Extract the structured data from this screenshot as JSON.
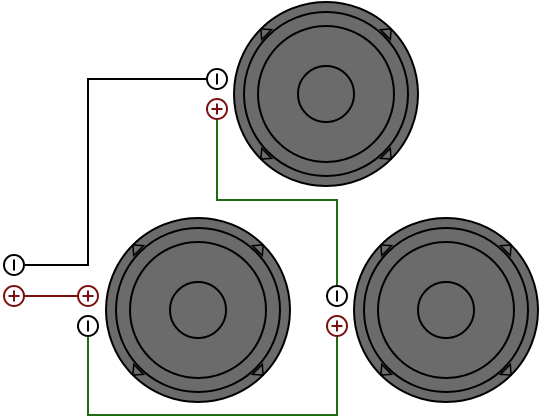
{
  "colors": {
    "background": "#ffffff",
    "speaker_fill": "#6b6b6b",
    "outline": "#000000",
    "negative_wire": "#000000",
    "positive_wire": "#7a1010",
    "series_wire": "#1f6b12",
    "positive_terminal": "#7a1010",
    "negative_terminal": "#000000"
  },
  "speakers": [
    {
      "id": "top",
      "icon": "speaker-icon"
    },
    {
      "id": "bottom-left",
      "icon": "speaker-icon"
    },
    {
      "id": "bottom-right",
      "icon": "speaker-icon"
    }
  ],
  "terminals": [
    {
      "id": "top-negative",
      "polarity": "negative"
    },
    {
      "id": "top-positive",
      "polarity": "positive"
    },
    {
      "id": "input-negative",
      "polarity": "negative"
    },
    {
      "id": "input-positive",
      "polarity": "positive"
    },
    {
      "id": "bottom-left-positive",
      "polarity": "positive"
    },
    {
      "id": "bottom-left-negative",
      "polarity": "negative"
    },
    {
      "id": "bottom-right-negative",
      "polarity": "negative"
    },
    {
      "id": "bottom-right-positive",
      "polarity": "positive"
    }
  ],
  "wires": [
    {
      "id": "input-negative-to-top-negative",
      "type": "negative"
    },
    {
      "id": "input-positive-to-bottom-left-positive",
      "type": "positive"
    },
    {
      "id": "top-positive-to-bottom-right-negative",
      "type": "series"
    },
    {
      "id": "bottom-left-negative-to-bottom-right-positive",
      "type": "series"
    }
  ]
}
